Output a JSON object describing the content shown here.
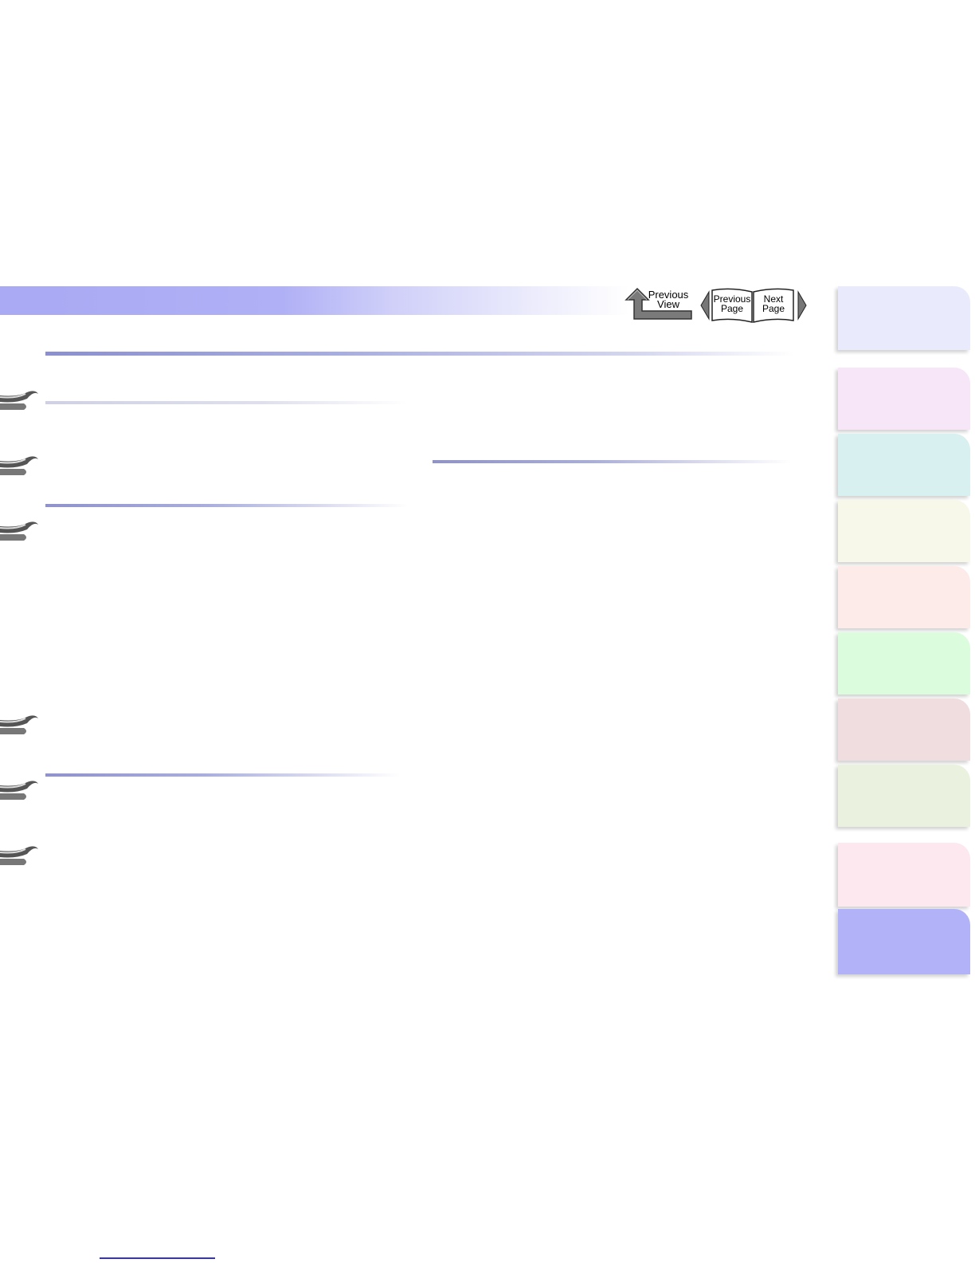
{
  "navigation": {
    "previous_view_line1": "Previous",
    "previous_view_line2": "View",
    "previous_page_line1": "Previous",
    "previous_page_line2": "Page",
    "next_page_line1": "Next",
    "next_page_line2": "Page"
  },
  "tabs": [
    {
      "color": "#e9eafb"
    },
    {
      "color": "#f7e6f8"
    },
    {
      "color": "#d8f0ef"
    },
    {
      "color": "#f7f7ea"
    },
    {
      "color": "#fdebea"
    },
    {
      "color": "#dcfddd"
    },
    {
      "color": "#f0dde0"
    },
    {
      "color": "#eaf2df"
    },
    {
      "color": "#fde8ef"
    },
    {
      "color": "#b2b2f8"
    }
  ],
  "colors": {
    "header_band": "#a9a9f4",
    "footer_link": "#3333cc"
  }
}
